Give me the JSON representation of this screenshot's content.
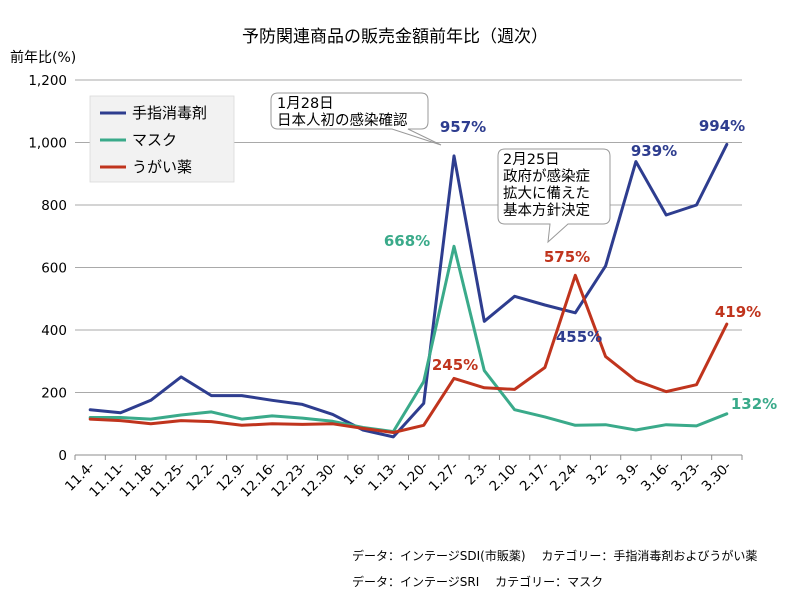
{
  "chart_data": {
    "type": "line",
    "title": "予防関連商品の販売金額前年比（週次）",
    "ylabel": "前年比(%)",
    "ylim": [
      0,
      1200
    ],
    "yticks": [
      "0",
      "200",
      "400",
      "600",
      "800",
      "1,000",
      "1,200"
    ],
    "grid": true,
    "legend_position": "top-left",
    "categories": [
      "11.4-",
      "11.11-",
      "11.18-",
      "11.25-",
      "12.2-",
      "12.9-",
      "12.16-",
      "12.23-",
      "12.30-",
      "1.6-",
      "1.13-",
      "1.20-",
      "1.27-",
      "2.3-",
      "2.10-",
      "2.17-",
      "2.24-",
      "3.2-",
      "3.9-",
      "3.16-",
      "3.23-",
      "3.30-"
    ],
    "series": [
      {
        "name": "手指消毒剤",
        "color": "#2e3d8f",
        "values": [
          145,
          135,
          175,
          250,
          190,
          190,
          175,
          162,
          130,
          80,
          58,
          165,
          957,
          428,
          508,
          480,
          455,
          605,
          939,
          768,
          800,
          994
        ]
      },
      {
        "name": "マスク",
        "color": "#3aaa8a",
        "values": [
          120,
          120,
          115,
          128,
          138,
          115,
          125,
          118,
          108,
          88,
          75,
          235,
          668,
          270,
          145,
          122,
          95,
          97,
          80,
          97,
          93,
          132
        ]
      },
      {
        "name": "うがい薬",
        "color": "#c0341d",
        "values": [
          115,
          110,
          100,
          110,
          107,
          95,
          100,
          98,
          100,
          85,
          72,
          95,
          245,
          215,
          210,
          280,
          575,
          315,
          238,
          203,
          225,
          419
        ]
      }
    ],
    "data_labels": [
      {
        "text": "957%",
        "series": 0,
        "index": 12
      },
      {
        "text": "939%",
        "series": 0,
        "index": 18
      },
      {
        "text": "994%",
        "series": 0,
        "index": 21
      },
      {
        "text": "455%",
        "series": 0,
        "index": 16
      },
      {
        "text": "668%",
        "series": 1,
        "index": 12
      },
      {
        "text": "132%",
        "series": 1,
        "index": 21
      },
      {
        "text": "245%",
        "series": 2,
        "index": 12
      },
      {
        "text": "575%",
        "series": 2,
        "index": 16
      },
      {
        "text": "419%",
        "series": 2,
        "index": 21
      }
    ],
    "annotations": [
      {
        "lines": [
          "1月28日",
          "日本人初の感染確認"
        ]
      },
      {
        "lines": [
          "2月25日",
          "政府が感染症",
          "拡大に備えた",
          "基本方針決定"
        ]
      }
    ]
  },
  "sources": [
    "データ：インテージSDI(市販薬)　 カテゴリー：手指消毒剤およびうがい薬",
    "データ：インテージSRI　 カテゴリー：マスク"
  ]
}
